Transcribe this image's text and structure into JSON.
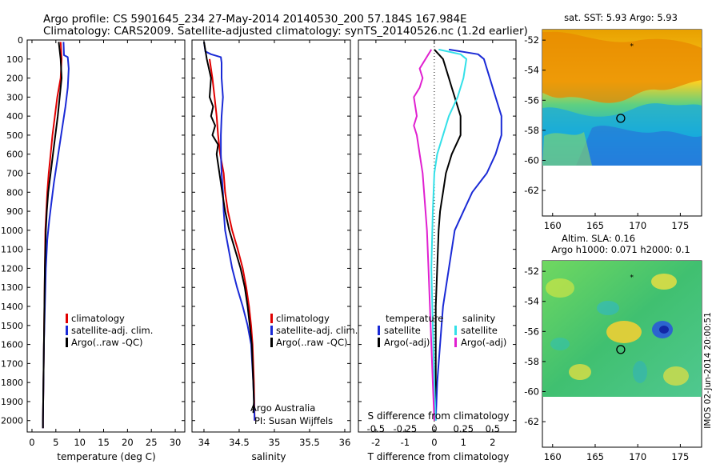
{
  "header": {
    "line1": "Argo profile: CS 5901645_234 27-May-2014 20140530_200 57.184S 167.984E",
    "line2": "Climatology: CARS2009. Satellite-adjusted climatology: synTS_20140526.nc (1.2d earlier)"
  },
  "colors": {
    "climatology": "#e00000",
    "satellite": "#1a2ad6",
    "argo": "#000000",
    "argo_raw": "#777777",
    "temp_satellite": "#1a2ad6",
    "sal_satellite": "#33e0e8",
    "sal_argo": "#e020d0"
  },
  "depth_axis": {
    "ticks": [
      0,
      100,
      200,
      300,
      400,
      500,
      600,
      700,
      800,
      900,
      1000,
      1100,
      1200,
      1300,
      1400,
      1500,
      1600,
      1700,
      1800,
      1900,
      2000
    ],
    "range": [
      0,
      2060
    ]
  },
  "chart_data": [
    {
      "type": "line",
      "name": "temperature-profile",
      "xlabel": "temperature (deg C)",
      "xlim": [
        -1,
        32
      ],
      "xticks": [
        0,
        5,
        10,
        15,
        20,
        25,
        30
      ],
      "legend": [
        "climatology",
        "satellite-adj. clim.",
        "Argo(..raw -QC)"
      ],
      "series": [
        {
          "name": "climatology",
          "color_key": "climatology",
          "points": [
            [
              6.0,
              10
            ],
            [
              6.2,
              100
            ],
            [
              6.0,
              200
            ],
            [
              5.3,
              300
            ],
            [
              4.8,
              400
            ],
            [
              4.3,
              500
            ],
            [
              3.9,
              600
            ],
            [
              3.5,
              700
            ],
            [
              3.2,
              800
            ],
            [
              3.0,
              900
            ],
            [
              2.8,
              1000
            ],
            [
              2.7,
              1200
            ],
            [
              2.6,
              1400
            ],
            [
              2.5,
              1600
            ],
            [
              2.4,
              1800
            ],
            [
              2.3,
              2000
            ],
            [
              2.3,
              2040
            ]
          ]
        },
        {
          "name": "satellite-adj. clim.",
          "color_key": "satellite",
          "points": [
            [
              6.6,
              10
            ],
            [
              6.7,
              80
            ],
            [
              7.5,
              90
            ],
            [
              7.7,
              150
            ],
            [
              7.5,
              250
            ],
            [
              7.0,
              350
            ],
            [
              6.4,
              450
            ],
            [
              5.8,
              550
            ],
            [
              5.2,
              650
            ],
            [
              4.6,
              750
            ],
            [
              4.1,
              850
            ],
            [
              3.6,
              950
            ],
            [
              3.2,
              1050
            ],
            [
              2.9,
              1200
            ],
            [
              2.7,
              1400
            ],
            [
              2.5,
              1600
            ],
            [
              2.4,
              1800
            ],
            [
              2.3,
              2000
            ],
            [
              2.3,
              2040
            ]
          ]
        },
        {
          "name": "Argo(..raw -QC)",
          "color_key": "argo",
          "points": [
            [
              5.6,
              10
            ],
            [
              6.0,
              100
            ],
            [
              6.2,
              200
            ],
            [
              5.8,
              300
            ],
            [
              5.4,
              400
            ],
            [
              4.9,
              500
            ],
            [
              4.4,
              600
            ],
            [
              3.9,
              700
            ],
            [
              3.4,
              800
            ],
            [
              3.1,
              900
            ],
            [
              2.9,
              1000
            ],
            [
              2.7,
              1200
            ],
            [
              2.6,
              1400
            ],
            [
              2.5,
              1600
            ],
            [
              2.4,
              1800
            ],
            [
              2.3,
              2000
            ],
            [
              2.3,
              2040
            ]
          ]
        }
      ]
    },
    {
      "type": "line",
      "name": "salinity-profile",
      "xlabel": "salinity",
      "xlim": [
        33.83,
        36.08
      ],
      "xticks": [
        34,
        34.5,
        35,
        35.5,
        36
      ],
      "legend": [
        "climatology",
        "satellite-adj. clim.",
        "Argo(..raw -QC)"
      ],
      "annotations": [
        "Argo Australia",
        "PI: Susan Wijffels"
      ],
      "series": [
        {
          "name": "climatology",
          "color_key": "climatology",
          "points": [
            [
              34.08,
              100
            ],
            [
              34.12,
              200
            ],
            [
              34.15,
              300
            ],
            [
              34.18,
              400
            ],
            [
              34.2,
              500
            ],
            [
              34.23,
              600
            ],
            [
              34.28,
              700
            ],
            [
              34.3,
              800
            ],
            [
              34.34,
              900
            ],
            [
              34.4,
              1000
            ],
            [
              34.48,
              1100
            ],
            [
              34.55,
              1200
            ],
            [
              34.6,
              1300
            ],
            [
              34.64,
              1400
            ],
            [
              34.67,
              1500
            ],
            [
              34.69,
              1600
            ],
            [
              34.71,
              1800
            ],
            [
              34.72,
              2000
            ]
          ]
        },
        {
          "name": "satellite-adj. clim.",
          "color_key": "satellite",
          "points": [
            [
              34.0,
              10
            ],
            [
              34.02,
              60
            ],
            [
              34.1,
              75
            ],
            [
              34.24,
              90
            ],
            [
              34.25,
              120
            ],
            [
              34.25,
              200
            ],
            [
              34.27,
              300
            ],
            [
              34.25,
              400
            ],
            [
              34.24,
              500
            ],
            [
              34.24,
              600
            ],
            [
              34.25,
              700
            ],
            [
              34.27,
              800
            ],
            [
              34.28,
              900
            ],
            [
              34.3,
              1000
            ],
            [
              34.35,
              1100
            ],
            [
              34.4,
              1200
            ],
            [
              34.47,
              1300
            ],
            [
              34.55,
              1400
            ],
            [
              34.62,
              1500
            ],
            [
              34.67,
              1600
            ],
            [
              34.7,
              1800
            ],
            [
              34.72,
              2000
            ]
          ]
        },
        {
          "name": "Argo(..raw -QC)",
          "color_key": "argo",
          "points": [
            [
              34.0,
              10
            ],
            [
              34.04,
              100
            ],
            [
              34.1,
              200
            ],
            [
              34.08,
              300
            ],
            [
              34.13,
              350
            ],
            [
              34.1,
              400
            ],
            [
              34.16,
              450
            ],
            [
              34.12,
              500
            ],
            [
              34.2,
              550
            ],
            [
              34.18,
              600
            ],
            [
              34.22,
              700
            ],
            [
              34.26,
              800
            ],
            [
              34.3,
              900
            ],
            [
              34.36,
              1000
            ],
            [
              34.44,
              1100
            ],
            [
              34.52,
              1200
            ],
            [
              34.58,
              1300
            ],
            [
              34.62,
              1400
            ],
            [
              34.65,
              1500
            ],
            [
              34.68,
              1600
            ],
            [
              34.7,
              1800
            ],
            [
              34.71,
              1900
            ],
            [
              34.7,
              1960
            ]
          ]
        }
      ]
    },
    {
      "type": "line",
      "name": "difference-profile",
      "xlabel": "T difference from climatology",
      "x2label": "S difference from climatology",
      "xlim": [
        -2.6,
        2.8
      ],
      "xticks": [
        -2,
        -1,
        0,
        1,
        2
      ],
      "x2ticks": [
        -0.5,
        -0.25,
        0,
        0.25,
        0.5
      ],
      "x2ticklabels": [
        "-0.5",
        "-0.25",
        "0",
        "0.25",
        "0.5"
      ],
      "legend_groups": [
        {
          "title": "temperature",
          "items": [
            "satellite",
            "Argo(-adj)"
          ]
        },
        {
          "title": "salinity",
          "items": [
            "satellite",
            "Argo(-adj)"
          ]
        }
      ],
      "series": [
        {
          "name": "temperature satellite",
          "color_key": "temp_satellite",
          "points": [
            [
              0.5,
              50
            ],
            [
              1.5,
              75
            ],
            [
              1.7,
              100
            ],
            [
              1.9,
              200
            ],
            [
              2.1,
              300
            ],
            [
              2.3,
              400
            ],
            [
              2.3,
              500
            ],
            [
              2.1,
              600
            ],
            [
              1.8,
              700
            ],
            [
              1.3,
              800
            ],
            [
              1.0,
              900
            ],
            [
              0.7,
              1000
            ],
            [
              0.5,
              1200
            ],
            [
              0.3,
              1400
            ],
            [
              0.2,
              1600
            ],
            [
              0.1,
              1800
            ],
            [
              0.05,
              2000
            ]
          ]
        },
        {
          "name": "temperature Argo(-adj)",
          "color_key": "argo",
          "points": [
            [
              0.0,
              50
            ],
            [
              0.3,
              100
            ],
            [
              0.5,
              200
            ],
            [
              0.6,
              250
            ],
            [
              0.7,
              300
            ],
            [
              0.9,
              400
            ],
            [
              0.9,
              500
            ],
            [
              0.6,
              600
            ],
            [
              0.4,
              700
            ],
            [
              0.3,
              800
            ],
            [
              0.2,
              900
            ],
            [
              0.15,
              1000
            ],
            [
              0.1,
              1200
            ],
            [
              0.05,
              1400
            ],
            [
              0.05,
              1600
            ],
            [
              0.05,
              1800
            ],
            [
              0.0,
              2000
            ]
          ]
        },
        {
          "name": "salinity satellite",
          "color_key": "sal_satellite",
          "points": [
            [
              0.15,
              50
            ],
            [
              0.9,
              75
            ],
            [
              1.1,
              100
            ],
            [
              1.0,
              200
            ],
            [
              0.8,
              300
            ],
            [
              0.5,
              400
            ],
            [
              0.3,
              500
            ],
            [
              0.1,
              600
            ],
            [
              0.0,
              700
            ],
            [
              -0.05,
              900
            ],
            [
              -0.1,
              1200
            ],
            [
              -0.05,
              1500
            ],
            [
              0.0,
              1800
            ],
            [
              0.05,
              2000
            ]
          ]
        },
        {
          "name": "salinity Argo(-adj)",
          "color_key": "sal_argo",
          "points": [
            [
              -0.1,
              50
            ],
            [
              -0.5,
              150
            ],
            [
              -0.4,
              200
            ],
            [
              -0.5,
              250
            ],
            [
              -0.7,
              300
            ],
            [
              -0.6,
              400
            ],
            [
              -0.7,
              450
            ],
            [
              -0.6,
              500
            ],
            [
              -0.5,
              600
            ],
            [
              -0.4,
              700
            ],
            [
              -0.35,
              800
            ],
            [
              -0.3,
              900
            ],
            [
              -0.25,
              1000
            ],
            [
              -0.2,
              1200
            ],
            [
              -0.15,
              1400
            ],
            [
              -0.1,
              1600
            ],
            [
              -0.05,
              1800
            ],
            [
              0.0,
              2000
            ]
          ]
        }
      ]
    },
    {
      "type": "heatmap",
      "name": "sst-map",
      "title": "sat. SST: 5.93 Argo: 5.93",
      "xticks": [
        160,
        165,
        170,
        175
      ],
      "yticks": [
        -52,
        -54,
        -56,
        -58,
        -60,
        -62
      ],
      "xlim": [
        158.8,
        177.5
      ],
      "ylim": [
        -63.7,
        -51.3
      ],
      "data_ylim": [
        -51.3,
        -60.2
      ],
      "float_position": [
        168.0,
        -57.2
      ],
      "marker": [
        169.3,
        -52.4
      ]
    },
    {
      "type": "heatmap",
      "name": "sla-map",
      "title": "Altim. SLA: 0.16",
      "subtitle": "Argo h1000: 0.071 h2000: 0.1",
      "xticks": [
        160,
        165,
        170,
        175
      ],
      "yticks": [
        -52,
        -54,
        -56,
        -58,
        -60,
        -62
      ],
      "xlim": [
        158.8,
        177.5
      ],
      "ylim": [
        -63.7,
        -51.3
      ],
      "data_ylim": [
        -51.3,
        -60.2
      ],
      "float_position": [
        168.0,
        -57.2
      ],
      "marker": [
        169.3,
        -52.4
      ]
    }
  ],
  "side_label": "IMOS 02-Jun-2014 20:00:51"
}
